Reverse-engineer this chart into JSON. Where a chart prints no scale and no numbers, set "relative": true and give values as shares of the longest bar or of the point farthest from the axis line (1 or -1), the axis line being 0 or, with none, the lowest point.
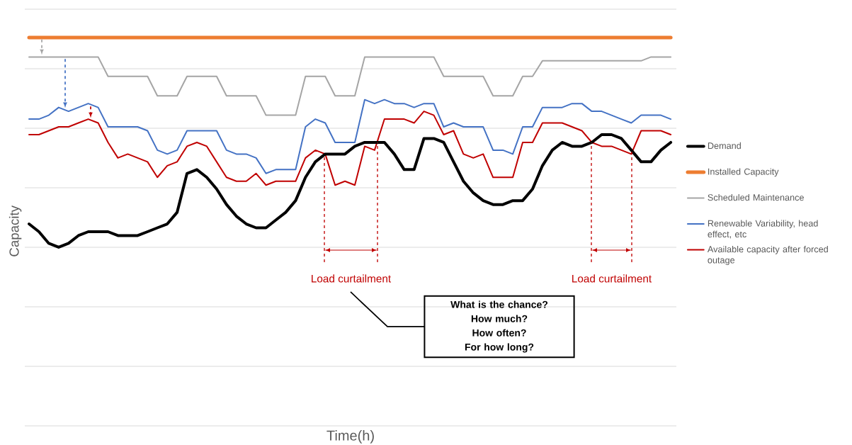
{
  "chart_data": {
    "type": "line",
    "relative": true,
    "xlabel": "Time(h)",
    "ylabel": "Capacity",
    "grid": "y",
    "legend": "right",
    "categories": [
      null,
      null,
      null,
      null,
      null,
      null,
      null,
      null,
      null,
      null,
      null,
      null,
      null,
      null,
      null,
      null,
      null,
      null,
      null,
      null,
      null,
      null,
      null,
      null,
      null,
      null,
      null,
      null,
      null,
      null,
      null,
      null,
      null,
      null,
      null,
      null,
      null,
      null,
      null,
      null,
      null,
      null,
      null,
      null,
      null,
      null,
      null,
      null,
      null,
      null,
      null,
      null,
      null,
      null,
      null,
      null,
      null,
      null,
      null,
      null,
      null,
      null,
      null,
      null,
      null,
      null
    ],
    "series": [
      {
        "name": "Demand",
        "color": "#000000",
        "values": [
          0.52,
          0.5,
          0.47,
          0.46,
          0.47,
          0.49,
          0.5,
          0.5,
          0.5,
          0.49,
          0.49,
          0.49,
          0.5,
          0.51,
          0.52,
          0.55,
          0.65,
          0.66,
          0.64,
          0.61,
          0.57,
          0.54,
          0.52,
          0.51,
          0.51,
          0.53,
          0.55,
          0.58,
          0.64,
          0.68,
          0.7,
          0.7,
          0.7,
          0.72,
          0.73,
          0.73,
          0.73,
          0.7,
          0.66,
          0.66,
          0.74,
          0.74,
          0.73,
          0.68,
          0.63,
          0.6,
          0.58,
          0.57,
          0.57,
          0.58,
          0.58,
          0.61,
          0.67,
          0.71,
          0.73,
          0.72,
          0.72,
          0.73,
          0.75,
          0.75,
          0.74,
          0.71,
          0.68,
          0.68,
          0.71,
          0.73
        ]
      },
      {
        "name": "Installed Capacity",
        "color": "#ed7d31",
        "values": [
          1,
          1,
          1,
          1,
          1,
          1,
          1,
          1,
          1,
          1,
          1,
          1,
          1,
          1,
          1,
          1,
          1,
          1,
          1,
          1,
          1,
          1,
          1,
          1,
          1,
          1,
          1,
          1,
          1,
          1,
          1,
          1,
          1,
          1,
          1,
          1,
          1,
          1,
          1,
          1,
          1,
          1,
          1,
          1,
          1,
          1,
          1,
          1,
          1,
          1,
          1,
          1,
          1,
          1,
          1,
          1,
          1,
          1,
          1,
          1,
          1,
          1,
          1,
          1,
          1,
          1
        ]
      },
      {
        "name": "Scheduled Maintenance",
        "color": "#a5a5a5",
        "values": [
          0.95,
          0.95,
          0.95,
          0.95,
          0.95,
          0.95,
          0.95,
          0.95,
          0.9,
          0.9,
          0.9,
          0.9,
          0.9,
          0.85,
          0.85,
          0.85,
          0.9,
          0.9,
          0.9,
          0.9,
          0.85,
          0.85,
          0.85,
          0.85,
          0.8,
          0.8,
          0.8,
          0.8,
          0.9,
          0.9,
          0.9,
          0.85,
          0.85,
          0.85,
          0.95,
          0.95,
          0.95,
          0.95,
          0.95,
          0.95,
          0.95,
          0.95,
          0.9,
          0.9,
          0.9,
          0.9,
          0.9,
          0.85,
          0.85,
          0.85,
          0.9,
          0.9,
          0.94,
          0.94,
          0.94,
          0.94,
          0.94,
          0.94,
          0.94,
          0.94,
          0.94,
          0.94,
          0.94,
          0.95,
          0.95,
          0.95
        ]
      },
      {
        "name": "Renewable Variability, head effect, etc",
        "color": "#4472c4",
        "values": [
          0.79,
          0.79,
          0.8,
          0.82,
          0.81,
          0.82,
          0.83,
          0.82,
          0.77,
          0.77,
          0.77,
          0.77,
          0.76,
          0.71,
          0.7,
          0.71,
          0.76,
          0.76,
          0.76,
          0.76,
          0.71,
          0.7,
          0.7,
          0.69,
          0.65,
          0.66,
          0.66,
          0.66,
          0.77,
          0.79,
          0.78,
          0.73,
          0.73,
          0.73,
          0.84,
          0.83,
          0.84,
          0.83,
          0.83,
          0.82,
          0.83,
          0.83,
          0.77,
          0.78,
          0.77,
          0.77,
          0.77,
          0.71,
          0.71,
          0.7,
          0.77,
          0.77,
          0.82,
          0.82,
          0.82,
          0.83,
          0.83,
          0.81,
          0.81,
          0.8,
          0.79,
          0.78,
          0.8,
          0.8,
          0.8,
          0.79
        ]
      },
      {
        "name": "Available capacity after forced outage",
        "color": "#c00000",
        "values": [
          0.75,
          0.75,
          0.76,
          0.77,
          0.77,
          0.78,
          0.79,
          0.78,
          0.73,
          0.69,
          0.7,
          0.69,
          0.68,
          0.64,
          0.67,
          0.68,
          0.72,
          0.73,
          0.72,
          0.68,
          0.64,
          0.63,
          0.63,
          0.65,
          0.62,
          0.63,
          0.63,
          0.63,
          0.69,
          0.71,
          0.7,
          0.62,
          0.63,
          0.62,
          0.72,
          0.71,
          0.79,
          0.79,
          0.79,
          0.78,
          0.81,
          0.8,
          0.75,
          0.76,
          0.7,
          0.69,
          0.7,
          0.64,
          0.64,
          0.64,
          0.73,
          0.73,
          0.78,
          0.78,
          0.78,
          0.77,
          0.76,
          0.73,
          0.72,
          0.72,
          0.71,
          0.7,
          0.76,
          0.76,
          0.76,
          0.75
        ]
      }
    ],
    "annotations": [
      "Load curtailment",
      "Load curtailment",
      "What is the chance?",
      "How much?",
      "How often?",
      "For how long?"
    ]
  }
}
